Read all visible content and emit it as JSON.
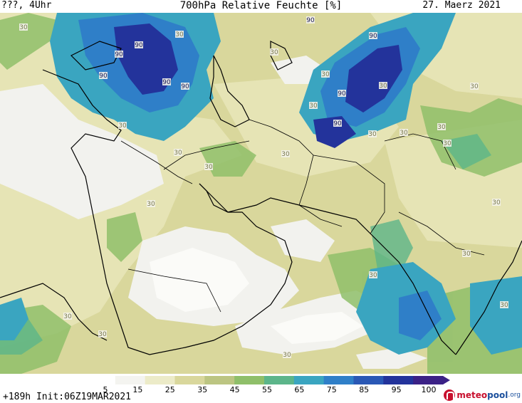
{
  "header": {
    "location": "???, 4Uhr",
    "title": "700hPa Relative Feuchte [%]",
    "date": "27. Maerz 2021"
  },
  "footer": {
    "run_info": "+189h  Init:06Z19MAR2021",
    "logo_part1": "meteo",
    "logo_part2": "pool",
    "logo_suffix": ".org"
  },
  "legend": {
    "ticks": [
      "5",
      "15",
      "25",
      "35",
      "45",
      "55",
      "65",
      "75",
      "85",
      "95",
      "100"
    ],
    "colors": [
      "#ffffff",
      "#f4f4f0",
      "#ecebc8",
      "#d9d79c",
      "#bcc582",
      "#8fbf6a",
      "#5cb58a",
      "#3aa5c0",
      "#2f7fc8",
      "#2a58b5",
      "#23339b",
      "#3b2186"
    ]
  },
  "map": {
    "contour_labels": [
      "30",
      "30",
      "90",
      "90",
      "90",
      "90",
      "90",
      "90",
      "30",
      "90",
      "90",
      "30",
      "30",
      "90",
      "30",
      "30",
      "30",
      "30",
      "30",
      "30",
      "30",
      "30",
      "30",
      "30",
      "30",
      "30",
      "30",
      "30",
      "30",
      "30",
      "30",
      "30"
    ]
  }
}
